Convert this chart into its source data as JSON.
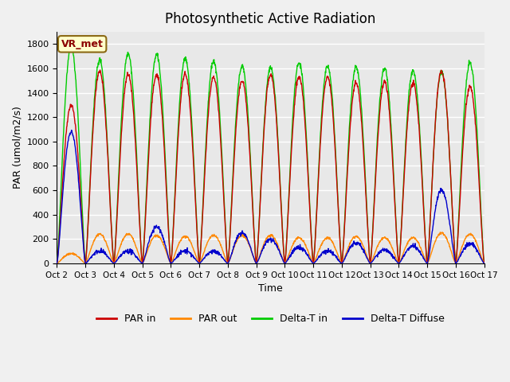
{
  "title": "Photosynthetic Active Radiation",
  "ylabel": "PAR (umol/m2/s)",
  "xlabel": "Time",
  "xlim": [
    0,
    15
  ],
  "ylim": [
    0,
    1900
  ],
  "yticks": [
    0,
    200,
    400,
    600,
    800,
    1000,
    1200,
    1400,
    1600,
    1800
  ],
  "xtick_labels": [
    "Oct 2",
    "Oct 3",
    "Oct 4",
    "Oct 5",
    "Oct 6",
    "Oct 7",
    "Oct 8",
    "Oct 9",
    "Oct 10",
    "Oct 11",
    "Oct 12",
    "Oct 13",
    "Oct 14",
    "Oct 15",
    "Oct 16",
    "Oct 17"
  ],
  "xtick_positions": [
    0,
    1,
    2,
    3,
    4,
    5,
    6,
    7,
    8,
    9,
    10,
    11,
    12,
    13,
    14,
    15
  ],
  "bg_color": "#e8e8e8",
  "grid_color": "#ffffff",
  "annotation_text": "VR_met",
  "colors": {
    "par_in": "#cc0000",
    "par_out": "#ff8800",
    "delta_t_in": "#00cc00",
    "delta_t_diffuse": "#0000cc"
  },
  "legend_labels": [
    "PAR in",
    "PAR out",
    "Delta-T in",
    "Delta-T Diffuse"
  ],
  "figsize": [
    6.4,
    4.8
  ],
  "dpi": 100
}
